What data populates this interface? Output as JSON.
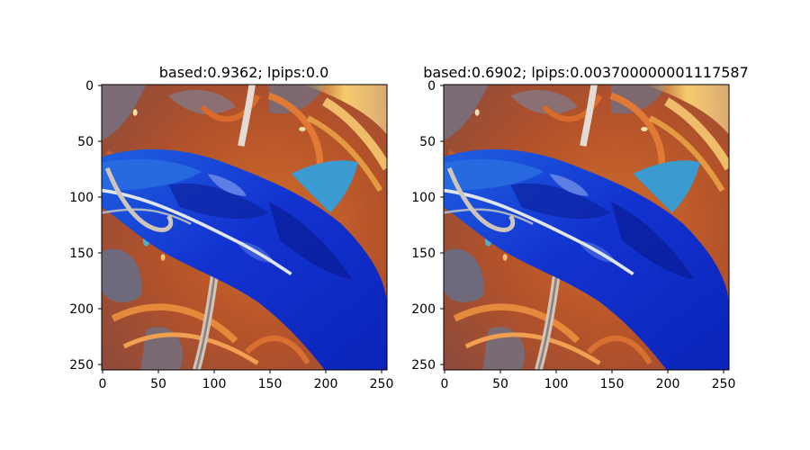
{
  "panels": [
    {
      "title": "based:0.9362; lpips:0.0",
      "x_ticks": [
        "0",
        "50",
        "100",
        "150",
        "200",
        "250"
      ],
      "y_ticks": [
        "0",
        "50",
        "100",
        "150",
        "200",
        "250"
      ]
    },
    {
      "title": "based:0.6902; lpips:0.003700000001117587",
      "x_ticks": [
        "0",
        "50",
        "100",
        "150",
        "200",
        "250"
      ],
      "y_ticks": [
        "0",
        "50",
        "100",
        "150",
        "200",
        "250"
      ]
    }
  ],
  "image_extent": [
    0,
    256,
    256,
    0
  ],
  "image_content": "blue-fish-on-orange-swirl-background",
  "colors": {
    "background_orange": "#b8582a",
    "fish_blue": "#1534d6",
    "fish_dark_blue": "#0a1fa8",
    "fish_cyan": "#3fa6cc",
    "hook_silver": "#d8d0c8",
    "gray_patch": "#7a6e7a"
  }
}
